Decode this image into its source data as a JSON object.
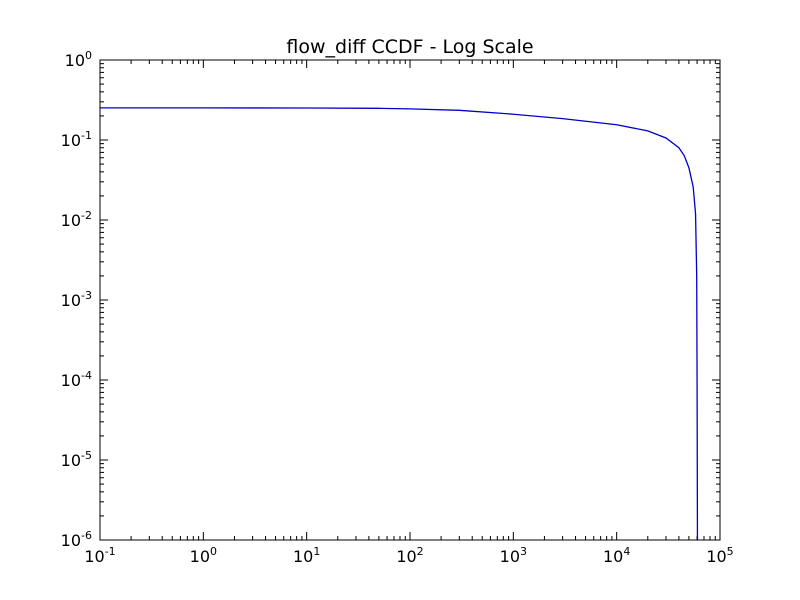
{
  "chart_data": {
    "type": "line",
    "title": "flow_diff CCDF - Log Scale",
    "xlabel": "",
    "ylabel": "",
    "xscale": "log",
    "yscale": "log",
    "xlim": [
      0.1,
      100000
    ],
    "ylim": [
      1e-06,
      1
    ],
    "grid": false,
    "legend": "none",
    "x_ticks": [
      {
        "value": 0.1,
        "base": "10",
        "exp": "-1"
      },
      {
        "value": 1,
        "base": "10",
        "exp": "0"
      },
      {
        "value": 10,
        "base": "10",
        "exp": "1"
      },
      {
        "value": 100,
        "base": "10",
        "exp": "2"
      },
      {
        "value": 1000,
        "base": "10",
        "exp": "3"
      },
      {
        "value": 10000,
        "base": "10",
        "exp": "4"
      },
      {
        "value": 100000,
        "base": "10",
        "exp": "5"
      }
    ],
    "y_ticks": [
      {
        "value": 1e-06,
        "base": "10",
        "exp": "-6"
      },
      {
        "value": 1e-05,
        "base": "10",
        "exp": "-5"
      },
      {
        "value": 0.0001,
        "base": "10",
        "exp": "-4"
      },
      {
        "value": 0.001,
        "base": "10",
        "exp": "-3"
      },
      {
        "value": 0.01,
        "base": "10",
        "exp": "-2"
      },
      {
        "value": 0.1,
        "base": "10",
        "exp": "-1"
      },
      {
        "value": 1,
        "base": "10",
        "exp": "0"
      }
    ],
    "series": [
      {
        "color": "#0000cc",
        "x": [
          0.1,
          1,
          10,
          50,
          100,
          300,
          1000,
          3000,
          10000,
          20000,
          30000,
          40000,
          45000,
          50000,
          55000,
          58000,
          59500,
          60000,
          60500
        ],
        "y": [
          0.252,
          0.252,
          0.251,
          0.249,
          0.245,
          0.235,
          0.21,
          0.185,
          0.155,
          0.13,
          0.106,
          0.08,
          0.064,
          0.045,
          0.026,
          0.012,
          0.002,
          0.0001,
          1e-06
        ]
      }
    ]
  }
}
